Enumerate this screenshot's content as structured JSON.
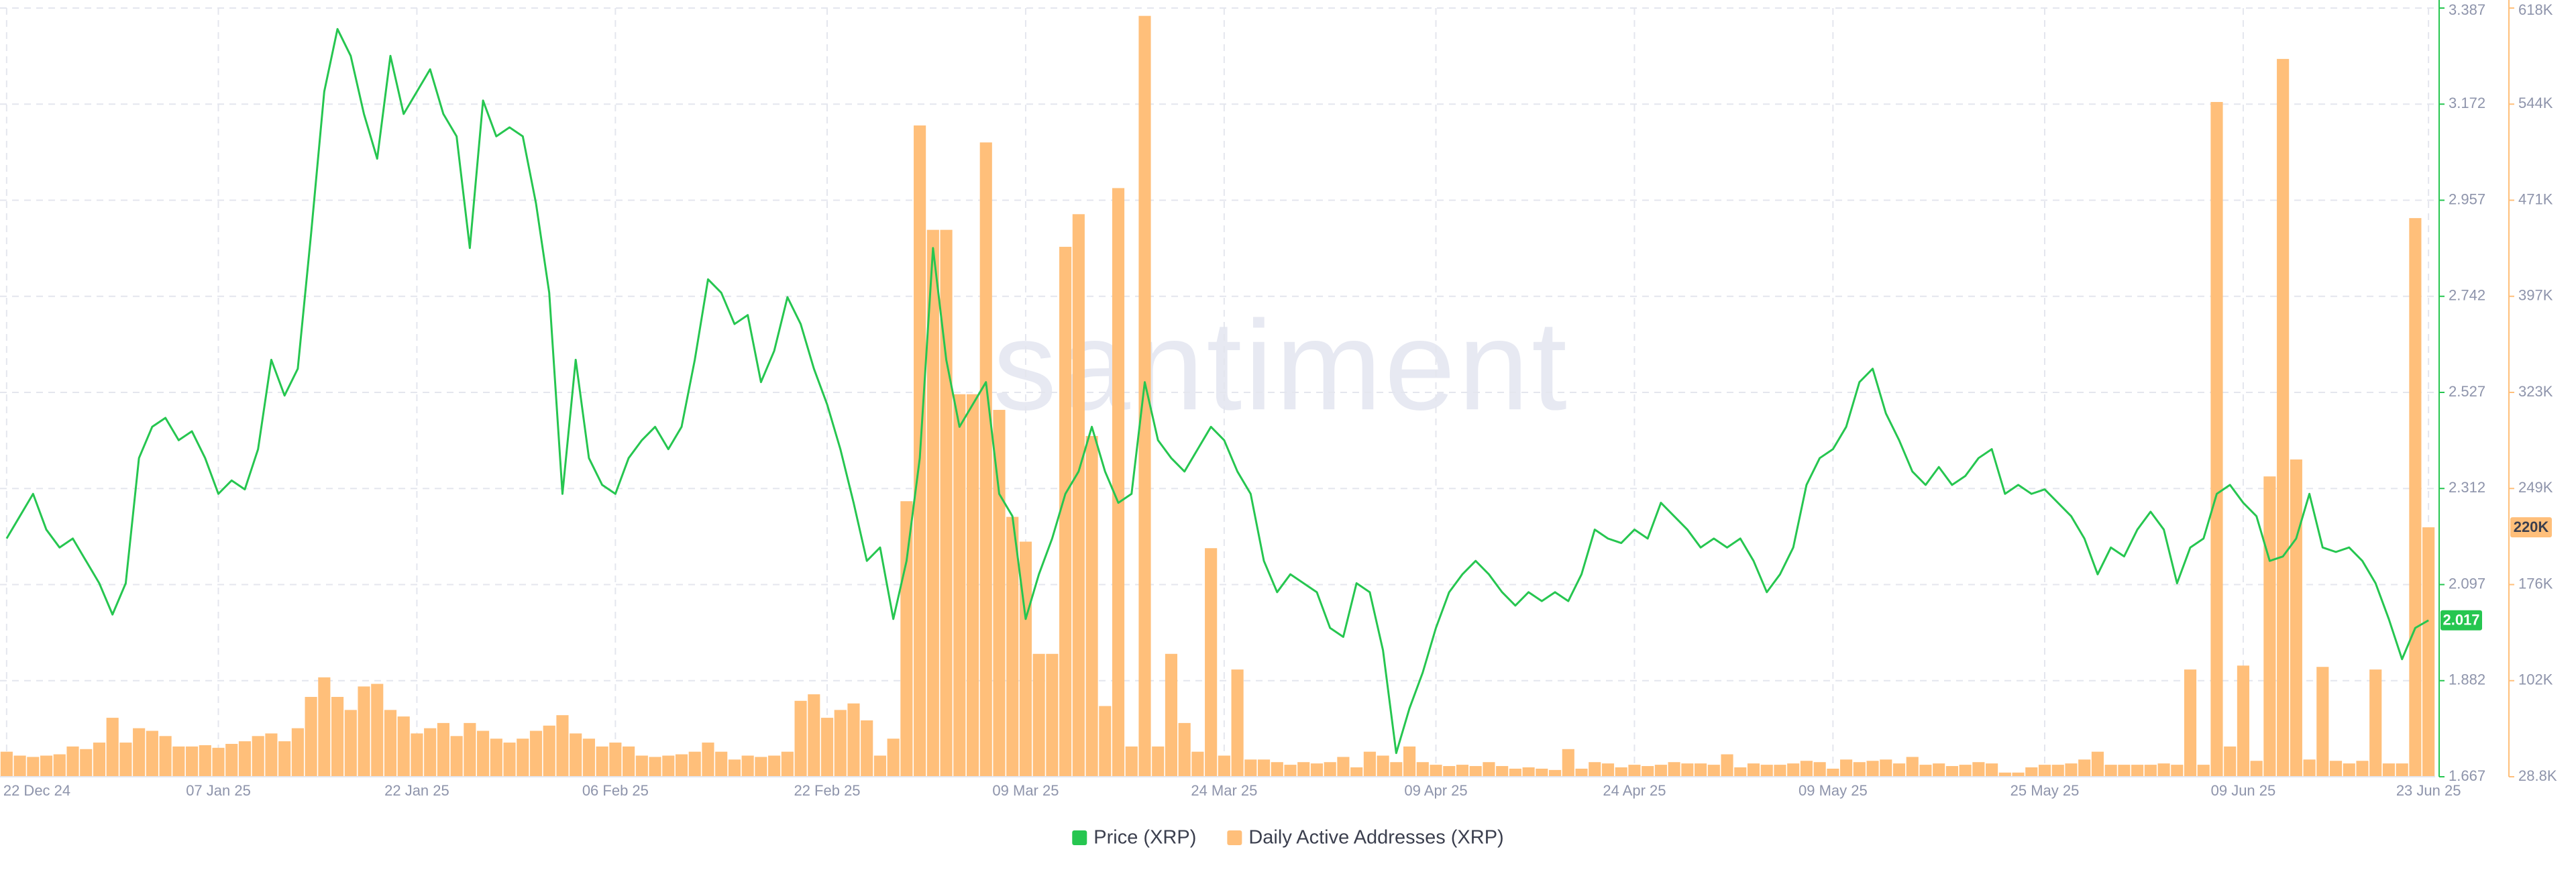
{
  "chart_data": {
    "type": "combo",
    "watermark": "santiment",
    "x": [
      "22 Dec 24",
      "23 Dec 24",
      "24 Dec 24",
      "25 Dec 24",
      "26 Dec 24",
      "27 Dec 24",
      "28 Dec 24",
      "29 Dec 24",
      "30 Dec 24",
      "31 Dec 24",
      "01 Jan 25",
      "02 Jan 25",
      "03 Jan 25",
      "04 Jan 25",
      "05 Jan 25",
      "06 Jan 25",
      "07 Jan 25",
      "08 Jan 25",
      "09 Jan 25",
      "10 Jan 25",
      "11 Jan 25",
      "12 Jan 25",
      "13 Jan 25",
      "14 Jan 25",
      "15 Jan 25",
      "16 Jan 25",
      "17 Jan 25",
      "18 Jan 25",
      "19 Jan 25",
      "20 Jan 25",
      "21 Jan 25",
      "22 Jan 25",
      "23 Jan 25",
      "24 Jan 25",
      "25 Jan 25",
      "26 Jan 25",
      "27 Jan 25",
      "28 Jan 25",
      "29 Jan 25",
      "30 Jan 25",
      "31 Jan 25",
      "01 Feb 25",
      "02 Feb 25",
      "03 Feb 25",
      "04 Feb 25",
      "05 Feb 25",
      "06 Feb 25",
      "07 Feb 25",
      "08 Feb 25",
      "09 Feb 25",
      "10 Feb 25",
      "11 Feb 25",
      "12 Feb 25",
      "13 Feb 25",
      "14 Feb 25",
      "15 Feb 25",
      "16 Feb 25",
      "17 Feb 25",
      "18 Feb 25",
      "19 Feb 25",
      "20 Feb 25",
      "21 Feb 25",
      "22 Feb 25",
      "23 Feb 25",
      "24 Feb 25",
      "25 Feb 25",
      "26 Feb 25",
      "27 Feb 25",
      "28 Feb 25",
      "01 Mar 25",
      "02 Mar 25",
      "03 Mar 25",
      "04 Mar 25",
      "05 Mar 25",
      "06 Mar 25",
      "07 Mar 25",
      "08 Mar 25",
      "09 Mar 25",
      "10 Mar 25",
      "11 Mar 25",
      "12 Mar 25",
      "13 Mar 25",
      "14 Mar 25",
      "15 Mar 25",
      "16 Mar 25",
      "17 Mar 25",
      "18 Mar 25",
      "19 Mar 25",
      "20 Mar 25",
      "21 Mar 25",
      "22 Mar 25",
      "23 Mar 25",
      "24 Mar 25",
      "25 Mar 25",
      "26 Mar 25",
      "27 Mar 25",
      "28 Mar 25",
      "29 Mar 25",
      "30 Mar 25",
      "31 Mar 25",
      "01 Apr 25",
      "02 Apr 25",
      "03 Apr 25",
      "04 Apr 25",
      "05 Apr 25",
      "06 Apr 25",
      "07 Apr 25",
      "08 Apr 25",
      "09 Apr 25",
      "10 Apr 25",
      "11 Apr 25",
      "12 Apr 25",
      "13 Apr 25",
      "14 Apr 25",
      "15 Apr 25",
      "16 Apr 25",
      "17 Apr 25",
      "18 Apr 25",
      "19 Apr 25",
      "20 Apr 25",
      "21 Apr 25",
      "22 Apr 25",
      "23 Apr 25",
      "24 Apr 25",
      "25 Apr 25",
      "26 Apr 25",
      "27 Apr 25",
      "28 Apr 25",
      "29 Apr 25",
      "30 Apr 25",
      "01 May 25",
      "02 May 25",
      "03 May 25",
      "04 May 25",
      "05 May 25",
      "06 May 25",
      "07 May 25",
      "08 May 25",
      "09 May 25",
      "10 May 25",
      "11 May 25",
      "12 May 25",
      "13 May 25",
      "14 May 25",
      "15 May 25",
      "16 May 25",
      "17 May 25",
      "18 May 25",
      "19 May 25",
      "20 May 25",
      "21 May 25",
      "22 May 25",
      "23 May 25",
      "24 May 25",
      "25 May 25",
      "26 May 25",
      "27 May 25",
      "28 May 25",
      "29 May 25",
      "30 May 25",
      "31 May 25",
      "01 Jun 25",
      "02 Jun 25",
      "03 Jun 25",
      "04 Jun 25",
      "05 Jun 25",
      "06 Jun 25",
      "07 Jun 25",
      "08 Jun 25",
      "09 Jun 25",
      "10 Jun 25",
      "11 Jun 25",
      "12 Jun 25",
      "13 Jun 25",
      "14 Jun 25",
      "15 Jun 25",
      "16 Jun 25",
      "17 Jun 25",
      "18 Jun 25",
      "19 Jun 25",
      "20 Jun 25",
      "21 Jun 25",
      "22 Jun 25",
      "23 Jun 25"
    ],
    "xticks": [
      "22 Dec 24",
      "07 Jan 25",
      "22 Jan 25",
      "06 Feb 25",
      "22 Feb 25",
      "09 Mar 25",
      "24 Mar 25",
      "09 Apr 25",
      "24 Apr 25",
      "09 May 25",
      "25 May 25",
      "09 Jun 25",
      "23 Jun 25"
    ],
    "ylim": [
      1.667,
      3.387
    ],
    "yticks": [
      1.667,
      1.882,
      2.097,
      2.312,
      2.527,
      2.742,
      2.957,
      3.172,
      3.387
    ],
    "y2lim": [
      28800,
      618000
    ],
    "y2ticks": [
      {
        "value": 28800,
        "label": "28.8K"
      },
      {
        "value": 102450,
        "label": "102K"
      },
      {
        "value": 176100,
        "label": "176K"
      },
      {
        "value": 249750,
        "label": "249K"
      },
      {
        "value": 323400,
        "label": "323K"
      },
      {
        "value": 397050,
        "label": "397K"
      },
      {
        "value": 470700,
        "label": "471K"
      },
      {
        "value": 544350,
        "label": "544K"
      },
      {
        "value": 618000,
        "label": "618K"
      }
    ],
    "grid": true,
    "legend": "bottom",
    "series": [
      {
        "name": "Price (XRP)",
        "type": "line",
        "axis": "y",
        "color": "#26c650",
        "last_value_label": "2.017",
        "values": [
          2.2,
          2.25,
          2.3,
          2.22,
          2.18,
          2.2,
          2.15,
          2.1,
          2.03,
          2.1,
          2.38,
          2.45,
          2.47,
          2.42,
          2.44,
          2.38,
          2.3,
          2.33,
          2.31,
          2.4,
          2.6,
          2.52,
          2.58,
          2.88,
          3.2,
          3.34,
          3.28,
          3.15,
          3.05,
          3.28,
          3.15,
          3.2,
          3.25,
          3.15,
          3.1,
          2.85,
          3.18,
          3.1,
          3.12,
          3.1,
          2.95,
          2.75,
          2.3,
          2.6,
          2.38,
          2.32,
          2.3,
          2.38,
          2.42,
          2.45,
          2.4,
          2.45,
          2.6,
          2.78,
          2.75,
          2.68,
          2.7,
          2.55,
          2.62,
          2.74,
          2.68,
          2.58,
          2.5,
          2.4,
          2.28,
          2.15,
          2.18,
          2.02,
          2.15,
          2.38,
          2.85,
          2.6,
          2.45,
          2.5,
          2.55,
          2.3,
          2.25,
          2.02,
          2.12,
          2.2,
          2.3,
          2.35,
          2.45,
          2.35,
          2.28,
          2.3,
          2.55,
          2.42,
          2.38,
          2.35,
          2.4,
          2.45,
          2.42,
          2.35,
          2.3,
          2.15,
          2.08,
          2.12,
          2.1,
          2.08,
          2.0,
          1.98,
          2.1,
          2.08,
          1.95,
          1.72,
          1.82,
          1.9,
          2.0,
          2.08,
          2.12,
          2.15,
          2.12,
          2.08,
          2.05,
          2.08,
          2.06,
          2.08,
          2.06,
          2.12,
          2.22,
          2.2,
          2.19,
          2.22,
          2.2,
          2.28,
          2.25,
          2.22,
          2.18,
          2.2,
          2.18,
          2.2,
          2.15,
          2.08,
          2.12,
          2.18,
          2.32,
          2.38,
          2.4,
          2.45,
          2.55,
          2.58,
          2.48,
          2.42,
          2.35,
          2.32,
          2.36,
          2.32,
          2.34,
          2.38,
          2.4,
          2.3,
          2.32,
          2.3,
          2.31,
          2.28,
          2.25,
          2.2,
          2.12,
          2.18,
          2.16,
          2.22,
          2.26,
          2.22,
          2.1,
          2.18,
          2.2,
          2.3,
          2.32,
          2.28,
          2.25,
          2.15,
          2.16,
          2.2,
          2.3,
          2.18,
          2.17,
          2.18,
          2.15,
          2.1,
          2.02,
          1.93,
          2.0,
          2.017
        ]
      },
      {
        "name": "Daily Active Addresses (XRP)",
        "type": "bar",
        "axis": "y2",
        "color": "#ffbf7a",
        "last_value_label": "220K",
        "values": [
          48000,
          45000,
          44000,
          45000,
          46000,
          52000,
          50000,
          55000,
          74000,
          55000,
          66000,
          64000,
          60000,
          52000,
          52000,
          53000,
          51000,
          54000,
          56000,
          60000,
          62000,
          56000,
          66000,
          90000,
          105000,
          90000,
          80000,
          98000,
          100000,
          80000,
          75000,
          62000,
          66000,
          70000,
          60000,
          70000,
          64000,
          58000,
          55000,
          58000,
          64000,
          68000,
          76000,
          62000,
          58000,
          52000,
          55000,
          52000,
          45000,
          44000,
          45000,
          46000,
          48000,
          55000,
          48000,
          42000,
          45000,
          44000,
          45000,
          48000,
          87000,
          92000,
          74000,
          80000,
          85000,
          72000,
          45000,
          58000,
          240000,
          528000,
          448000,
          448000,
          322000,
          322000,
          515000,
          310000,
          228000,
          209000,
          123000,
          123000,
          435000,
          460000,
          290000,
          83000,
          480000,
          52000,
          612000,
          52000,
          123000,
          70000,
          48000,
          204000,
          45000,
          111000,
          42000,
          42000,
          40000,
          38000,
          40000,
          39000,
          40000,
          44000,
          36000,
          48000,
          45000,
          40000,
          52000,
          40000,
          38000,
          37000,
          38000,
          37000,
          40000,
          37000,
          35000,
          36000,
          35000,
          34000,
          50000,
          35000,
          40000,
          39000,
          36000,
          38000,
          37000,
          38000,
          40000,
          39000,
          39000,
          38000,
          46000,
          36000,
          39000,
          38000,
          38000,
          39000,
          41000,
          40000,
          35000,
          42000,
          40000,
          41000,
          42000,
          39000,
          44000,
          38000,
          39000,
          37000,
          38000,
          40000,
          39000,
          32000,
          32000,
          36000,
          38000,
          38000,
          39000,
          42000,
          48000,
          38000,
          38000,
          38000,
          38000,
          39000,
          38000,
          111000,
          38000,
          546000,
          52000,
          114000,
          41000,
          259000,
          579000,
          272000,
          42000,
          113000,
          41000,
          39000,
          41000,
          111000,
          39000,
          39000,
          457000,
          220000
        ]
      }
    ]
  }
}
